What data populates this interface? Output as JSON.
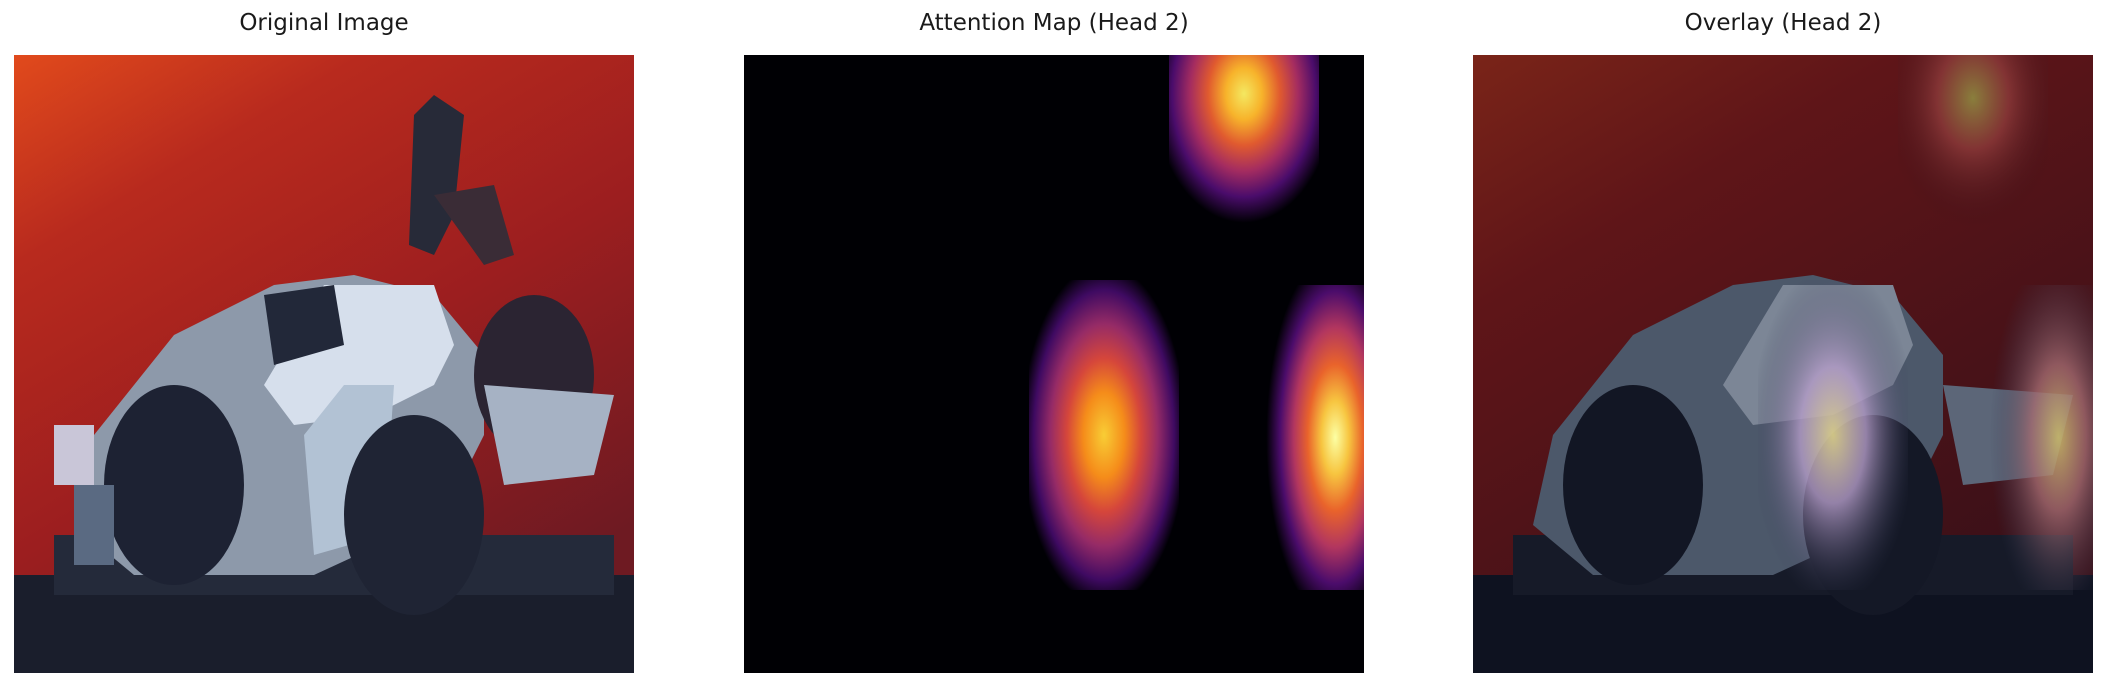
{
  "panels": [
    {
      "title": "Original Image"
    },
    {
      "title": "Attention Map (Head 2)"
    },
    {
      "title": "Overlay (Head 2)"
    }
  ],
  "colors": {
    "background_red": "#9a1c1e",
    "car_white": "#d8e2ee",
    "car_dark": "#1c2232",
    "inferno_low": "#000004",
    "inferno_mid": "#b73779",
    "inferno_high": "#fcffa4"
  }
}
